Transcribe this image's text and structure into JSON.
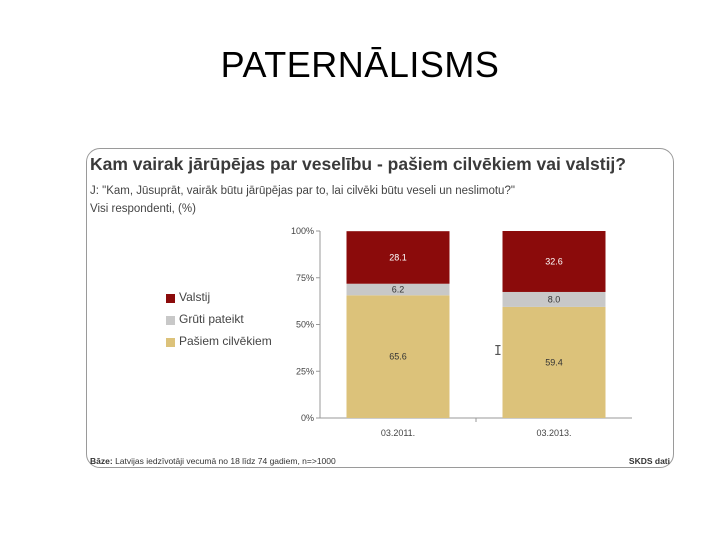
{
  "slide": {
    "title": "PATERNĀLISMS"
  },
  "card": {
    "title": "Kam vairak jārūpējas par veselību - pašiem cilvēkiem vai valstij?",
    "question": "J: \"Kam, Jūsuprāt, vairāk būtu jārūpējas par to, lai cilvēki būtu veseli un neslimotu?\"",
    "scope": "Visi respondenti, (%)",
    "footer_base_label": "Bāze:",
    "footer_base_text": "Latvijas iedzīvotāji vecumā no 18 līdz 74 gadiem, n=>1000",
    "footer_source": "SKDS dati"
  },
  "colors": {
    "valstij": "#8b0b0b",
    "gruti": "#c8c8c8",
    "pasiem": "#dcc27a"
  },
  "chart_data": {
    "type": "bar",
    "stacked": true,
    "percent": true,
    "categories": [
      "03.2011.",
      "03.2013."
    ],
    "series": [
      {
        "name": "Pašiem cilvēkiem",
        "values": [
          65.6,
          59.4
        ]
      },
      {
        "name": "Grūti pateikt",
        "values": [
          6.2,
          8.0
        ]
      },
      {
        "name": "Valstij",
        "values": [
          28.1,
          32.6
        ]
      }
    ],
    "legend": [
      "Valstij",
      "Grūti pateikt",
      "Pašiem cilvēkiem"
    ],
    "ylim": [
      0,
      100
    ],
    "yticks": [
      "0%",
      "25%",
      "50%",
      "75%",
      "100%"
    ],
    "legend_position": "left"
  }
}
